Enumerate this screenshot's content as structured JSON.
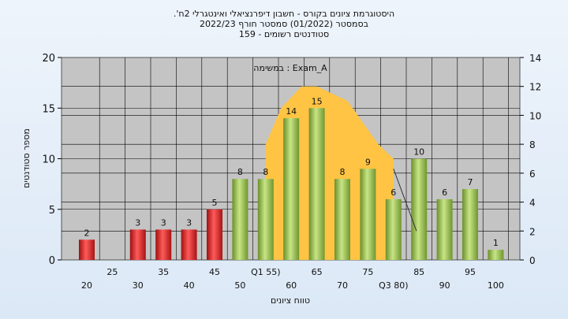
{
  "chart_data": {
    "type": "bar",
    "title": ".'היסטוגרמת ציונים בקורס - חשבון דיפרנציאלי ואינטגרלי 2ח",
    "subtitle": "בסמסטר  (01/2022)  סמסטר חורף 2022/23",
    "subtitle2": "סטודנטים רשומים - 159",
    "xlabel": "טווח ציונים",
    "ylabel": "מספר סטודנטים",
    "annotation": "במשימה : Exam_A",
    "ylim": [
      0,
      20
    ],
    "y2lim": [
      0,
      14
    ],
    "yticks": [
      "0",
      "5",
      "10",
      "15",
      "20"
    ],
    "y2ticks": [
      "0",
      "2",
      "4",
      "6",
      "8",
      "10",
      "12",
      "14"
    ],
    "bins": [
      20,
      25,
      30,
      35,
      40,
      45,
      50,
      55,
      60,
      65,
      70,
      75,
      80,
      85,
      90,
      95,
      100
    ],
    "tick_labels_lower": [
      "20",
      "30",
      "40",
      "50",
      "60",
      "70",
      "Q3 80)",
      "90",
      "100"
    ],
    "tick_labels_upper": [
      "25",
      "35",
      "45",
      "Q1 55)",
      "65",
      "75",
      "85",
      "95"
    ],
    "values": [
      2,
      0,
      3,
      3,
      3,
      5,
      8,
      8,
      14,
      15,
      8,
      9,
      6,
      10,
      6,
      7,
      1
    ],
    "data_labels": [
      "2",
      "",
      "3",
      "3",
      "3",
      "5",
      "8",
      "8",
      "14",
      "15",
      "8",
      "9",
      "6",
      "10",
      "6",
      "7",
      "1"
    ],
    "fail_threshold_bins": 6,
    "iqr_area": {
      "x": [
        55,
        58,
        62,
        65,
        68,
        71,
        74,
        77,
        80
      ],
      "y2": [
        8,
        10.5,
        12,
        12,
        11.5,
        11,
        9.5,
        8,
        7
      ]
    },
    "trend_line": {
      "x": [
        80,
        84.5
      ],
      "y2": [
        6.3,
        2.0
      ]
    },
    "colors": {
      "fail_bar": "#e8262a",
      "pass_bar": "#9cc450",
      "iqr_fill": "#ffc443",
      "plot_bg": "#c4c4c4",
      "grid": "#000000"
    },
    "grid": true
  }
}
